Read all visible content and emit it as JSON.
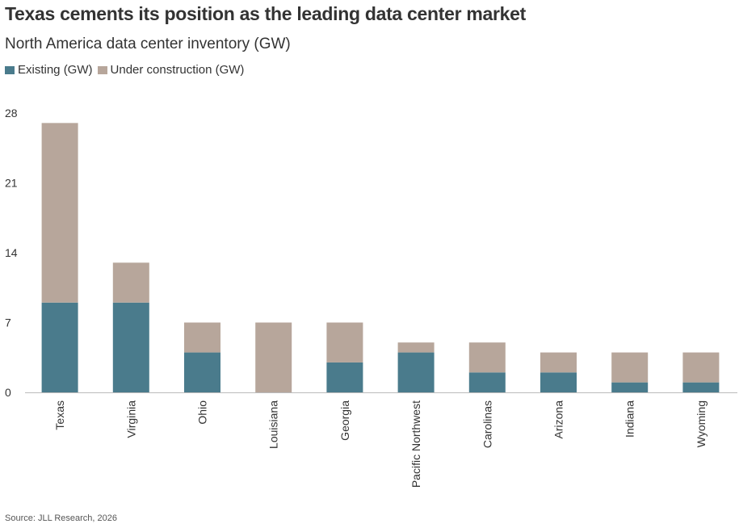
{
  "header": {
    "title": "Texas cements its position as the leading data center market",
    "subtitle": "North America data center inventory (GW)"
  },
  "source": "Source: JLL Research, 2026",
  "colors": {
    "existing": "#4a7b8c",
    "under_construction": "#b7a69b",
    "axis": "#bbbbbb"
  },
  "chart_data": {
    "type": "bar",
    "stacked": true,
    "title": "Texas cements its position as the leading data center market",
    "subtitle": "North America data center inventory (GW)",
    "categories": [
      "Texas",
      "Virginia",
      "Ohio",
      "Louisiana",
      "Georgia",
      "Pacific Northwest",
      "Carolinas",
      "Arizona",
      "Indiana",
      "Wyoming"
    ],
    "series": [
      {
        "name": "Existing (GW)",
        "values": [
          9,
          9,
          4,
          0,
          3,
          4,
          2,
          2,
          1,
          1
        ]
      },
      {
        "name": "Under construction (GW)",
        "values": [
          18,
          4,
          3,
          7,
          4,
          1,
          3,
          2,
          3,
          3
        ]
      }
    ],
    "yticks": [
      "0",
      "7",
      "14",
      "21",
      "28"
    ],
    "ylim": [
      0,
      28
    ],
    "grid": false,
    "legend_position": "top-left"
  }
}
